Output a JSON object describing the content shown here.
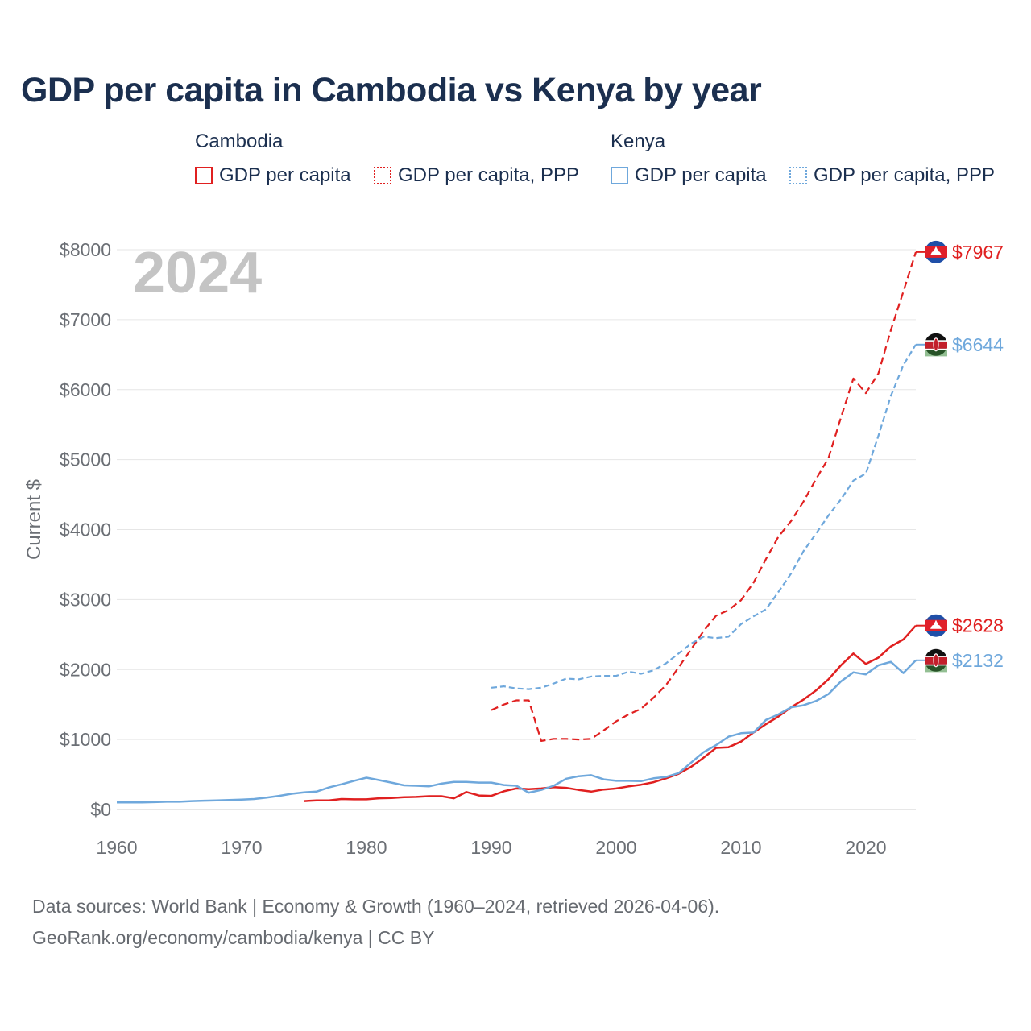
{
  "title": "GDP per capita in Cambodia vs Kenya by year",
  "year_watermark": "2024",
  "legend": {
    "groups": [
      {
        "name": "Cambodia",
        "items": [
          "GDP per capita",
          "GDP per capita, PPP"
        ]
      },
      {
        "name": "Kenya",
        "items": [
          "GDP per capita",
          "GDP per capita, PPP"
        ]
      }
    ]
  },
  "colors": {
    "cambodia": "#e02020",
    "kenya": "#6fa8dc",
    "grid": "#e6e6e6",
    "axis_text": "#6b6f75"
  },
  "chart_data": {
    "type": "line",
    "ylabel": "Current $",
    "xlim": [
      1960,
      2024
    ],
    "ylim": [
      0,
      8000
    ],
    "x_ticks": [
      "1960",
      "1970",
      "1980",
      "1990",
      "2000",
      "2010",
      "2020"
    ],
    "y_ticks": [
      "$0",
      "$1000",
      "$2000",
      "$3000",
      "$4000",
      "$5000",
      "$6000",
      "$7000",
      "$8000"
    ],
    "series": [
      {
        "name": "Cambodia GDP per capita",
        "country": "cambodia",
        "style": "solid",
        "end_label": "$2628",
        "x": [
          1975,
          1976,
          1977,
          1978,
          1979,
          1980,
          1981,
          1982,
          1983,
          1984,
          1985,
          1986,
          1987,
          1988,
          1989,
          1990,
          1991,
          1992,
          1993,
          1994,
          1995,
          1996,
          1997,
          1998,
          1999,
          2000,
          2001,
          2002,
          2003,
          2004,
          2005,
          2006,
          2007,
          2008,
          2009,
          2010,
          2011,
          2012,
          2013,
          2014,
          2015,
          2016,
          2017,
          2018,
          2019,
          2020,
          2021,
          2022,
          2023,
          2024
        ],
        "y": [
          120,
          130,
          130,
          150,
          145,
          145,
          160,
          165,
          175,
          180,
          190,
          190,
          160,
          250,
          200,
          195,
          260,
          300,
          290,
          300,
          320,
          310,
          280,
          255,
          285,
          300,
          330,
          355,
          390,
          445,
          510,
          610,
          740,
          880,
          890,
          970,
          1100,
          1220,
          1330,
          1460,
          1570,
          1700,
          1860,
          2060,
          2230,
          2080,
          2170,
          2330,
          2430,
          2628
        ]
      },
      {
        "name": "Cambodia GDP per capita, PPP",
        "country": "cambodia",
        "style": "dashed",
        "end_label": "$7967",
        "x": [
          1990,
          1991,
          1992,
          1993,
          1994,
          1995,
          1996,
          1997,
          1998,
          1999,
          2000,
          2001,
          2002,
          2003,
          2004,
          2005,
          2006,
          2007,
          2008,
          2009,
          2010,
          2011,
          2012,
          2013,
          2014,
          2015,
          2016,
          2017,
          2018,
          2019,
          2020,
          2021,
          2022,
          2023,
          2024
        ],
        "y": [
          1420,
          1500,
          1560,
          1560,
          980,
          1010,
          1010,
          1000,
          1010,
          1130,
          1260,
          1360,
          1440,
          1600,
          1780,
          2030,
          2290,
          2550,
          2770,
          2850,
          2990,
          3240,
          3580,
          3900,
          4120,
          4400,
          4720,
          5020,
          5600,
          6160,
          5950,
          6230,
          6850,
          7400,
          7967
        ]
      },
      {
        "name": "Kenya GDP per capita",
        "country": "kenya",
        "style": "solid",
        "end_label": "$2132",
        "x": [
          1960,
          1961,
          1962,
          1963,
          1964,
          1965,
          1966,
          1967,
          1968,
          1969,
          1970,
          1971,
          1972,
          1973,
          1974,
          1975,
          1976,
          1977,
          1978,
          1979,
          1980,
          1981,
          1982,
          1983,
          1984,
          1985,
          1986,
          1987,
          1988,
          1989,
          1990,
          1991,
          1992,
          1993,
          1994,
          1995,
          1996,
          1997,
          1998,
          1999,
          2000,
          2001,
          2002,
          2003,
          2004,
          2005,
          2006,
          2007,
          2008,
          2009,
          2010,
          2011,
          2012,
          2013,
          2014,
          2015,
          2016,
          2017,
          2018,
          2019,
          2020,
          2021,
          2022,
          2023,
          2024
        ],
        "y": [
          100,
          100,
          100,
          105,
          110,
          110,
          120,
          125,
          130,
          135,
          140,
          150,
          170,
          195,
          225,
          245,
          255,
          315,
          360,
          410,
          455,
          420,
          385,
          345,
          340,
          330,
          370,
          395,
          395,
          385,
          385,
          350,
          340,
          240,
          280,
          340,
          440,
          475,
          490,
          430,
          410,
          410,
          405,
          445,
          465,
          520,
          670,
          820,
          920,
          1040,
          1090,
          1100,
          1280,
          1360,
          1460,
          1490,
          1550,
          1650,
          1830,
          1960,
          1930,
          2060,
          2110,
          1950,
          2132
        ]
      },
      {
        "name": "Kenya GDP per capita, PPP",
        "country": "kenya",
        "style": "dotted",
        "end_label": "$6644",
        "x": [
          1990,
          1991,
          1992,
          1993,
          1994,
          1995,
          1996,
          1997,
          1998,
          1999,
          2000,
          2001,
          2002,
          2003,
          2004,
          2005,
          2006,
          2007,
          2008,
          2009,
          2010,
          2011,
          2012,
          2013,
          2014,
          2015,
          2016,
          2017,
          2018,
          2019,
          2020,
          2021,
          2022,
          2023,
          2024
        ],
        "y": [
          1740,
          1760,
          1730,
          1720,
          1740,
          1800,
          1870,
          1860,
          1900,
          1910,
          1910,
          1970,
          1940,
          1990,
          2090,
          2230,
          2370,
          2470,
          2450,
          2470,
          2650,
          2760,
          2860,
          3110,
          3370,
          3690,
          3940,
          4200,
          4430,
          4700,
          4800,
          5340,
          5910,
          6350,
          6644
        ]
      }
    ]
  },
  "footer": {
    "line1": "Data sources: World Bank | Economy & Growth (1960–2024, retrieved 2026-04-06).",
    "line2": "GeoRank.org/economy/cambodia/kenya | CC BY"
  }
}
